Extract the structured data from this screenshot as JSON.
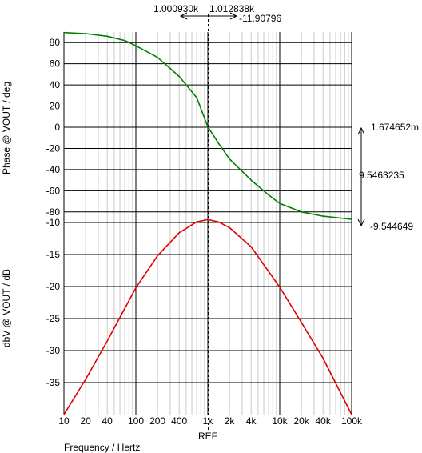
{
  "chart_data": [
    {
      "type": "line",
      "name": "phase-plot",
      "ylabel": "Phase @ VOUT / deg",
      "xscale": "log",
      "xlim": [
        10,
        100000
      ],
      "ylim": [
        -90,
        90
      ],
      "yticks": [
        80,
        60,
        40,
        20,
        0,
        -20,
        -40,
        -60,
        -80
      ],
      "grid": true,
      "series": [
        {
          "color": "#008000",
          "x": [
            10,
            20,
            40,
            70,
            100,
            200,
            400,
            700,
            1000,
            1400,
            2000,
            4000,
            7000,
            10000,
            20000,
            40000,
            100000
          ],
          "y": [
            89.5,
            88.5,
            86.0,
            82.0,
            77.0,
            66.0,
            48.0,
            28.0,
            0.5,
            -15.0,
            -30.0,
            -50.0,
            -64.0,
            -72.0,
            -80.0,
            -84.0,
            -87.0
          ]
        }
      ]
    },
    {
      "type": "line",
      "name": "gain-plot",
      "ylabel": "dbV @ VOUT / dB",
      "xlabel": "Frequency / Hertz",
      "xscale": "log",
      "xlim": [
        10,
        100000
      ],
      "ylim": [
        -40,
        -10
      ],
      "yticks": [
        -10,
        -15,
        -20,
        -25,
        -30,
        -35
      ],
      "grid": true,
      "series": [
        {
          "color": "#e00000",
          "x": [
            10,
            20,
            40,
            100,
            200,
            400,
            700,
            1000,
            1400,
            2000,
            4000,
            10000,
            20000,
            40000,
            100000
          ],
          "y": [
            -40,
            -34.5,
            -28.5,
            -20.2,
            -15.2,
            -11.6,
            -9.9,
            -9.55,
            -9.9,
            -10.8,
            -13.8,
            -20.1,
            -25.6,
            -31.2,
            -40
          ]
        }
      ]
    }
  ],
  "x_tick_labels": [
    {
      "f": 10,
      "label": "10"
    },
    {
      "f": 20,
      "label": "20"
    },
    {
      "f": 40,
      "label": "40"
    },
    {
      "f": 100,
      "label": "100"
    },
    {
      "f": 200,
      "label": "200"
    },
    {
      "f": 400,
      "label": "400"
    },
    {
      "f": 1000,
      "label": "1k"
    },
    {
      "f": 2000,
      "label": "2k"
    },
    {
      "f": 4000,
      "label": "4k"
    },
    {
      "f": 10000,
      "label": "10k"
    },
    {
      "f": 20000,
      "label": "20k"
    },
    {
      "f": 40000,
      "label": "40k"
    },
    {
      "f": 100000,
      "label": "100k"
    }
  ],
  "cursor": {
    "frequency": 1012.838,
    "ref_label": "REF",
    "freq_a": "1.000930k",
    "freq_b": "1.012838k",
    "delta_x": "-11.90796",
    "y_top": "1.674652m",
    "y_delta": "9.5463235",
    "y_bottom": "-9.544649"
  }
}
